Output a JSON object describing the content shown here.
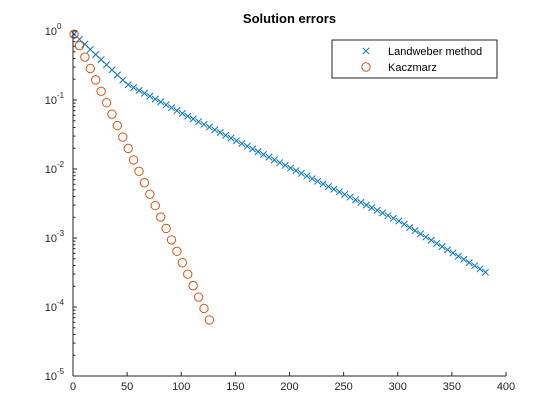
{
  "chart_data": {
    "type": "scatter",
    "title": "Solution errors",
    "xlabel": "",
    "ylabel": "",
    "xlim": [
      0,
      400
    ],
    "ylim": [
      1e-05,
      1
    ],
    "yscale": "log",
    "grid": false,
    "legend_position": "top-right",
    "x_ticks": [
      0,
      50,
      100,
      150,
      200,
      250,
      300,
      350,
      400
    ],
    "x_tick_labels": [
      "0",
      "50",
      "100",
      "150",
      "200",
      "250",
      "300",
      "350",
      "400"
    ],
    "y_ticks": [
      1e-05,
      0.0001,
      0.001,
      0.01,
      0.1,
      1
    ],
    "y_tick_labels": [
      {
        "base": "10",
        "exp": "-5"
      },
      {
        "base": "10",
        "exp": "-4"
      },
      {
        "base": "10",
        "exp": "-3"
      },
      {
        "base": "10",
        "exp": "-2"
      },
      {
        "base": "10",
        "exp": "-1"
      },
      {
        "base": "10",
        "exp": "0"
      }
    ],
    "series": [
      {
        "name": "Landweber method",
        "marker": "x",
        "color": "#0072BD",
        "x_start": 1,
        "x_step": 5,
        "x_end": 381,
        "y_at_start": 0.9,
        "y_at_end": 0.00032,
        "curve_points": [
          [
            1,
            0.9
          ],
          [
            50,
            0.17
          ],
          [
            100,
            0.065
          ],
          [
            200,
            0.0105
          ],
          [
            300,
            0.0018
          ],
          [
            381,
            0.00032
          ]
        ]
      },
      {
        "name": "Kaczmarz",
        "marker": "o",
        "color": "#D95319",
        "x_start": 1,
        "x_step": 5,
        "x_end": 126,
        "y_at_start": 0.9,
        "y_at_end": 6.5e-05
      }
    ]
  }
}
